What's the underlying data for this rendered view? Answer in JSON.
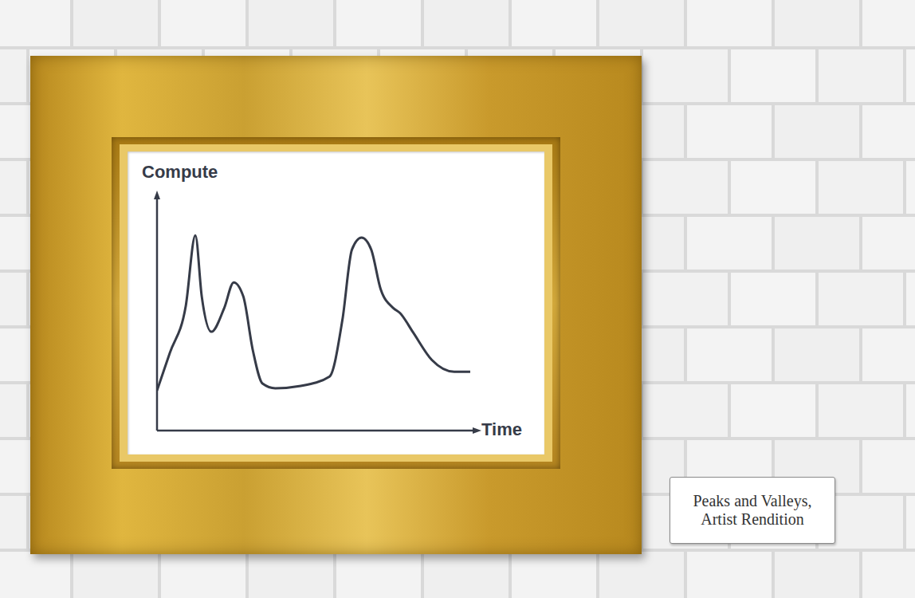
{
  "chart_data": {
    "type": "line",
    "x_label": "Time",
    "y_label": "Compute",
    "x": [
      0,
      4,
      9,
      12,
      14,
      17,
      21,
      24,
      27,
      30,
      33,
      37,
      45,
      54,
      58,
      61,
      64,
      67,
      70,
      74,
      76,
      80,
      86,
      93,
      98
    ],
    "values": [
      17,
      33,
      53,
      83,
      57,
      42,
      52,
      63,
      57,
      34,
      20,
      18,
      19,
      23,
      47,
      77,
      82,
      77,
      60,
      52,
      50,
      42,
      30,
      25,
      25
    ],
    "xlim": [
      0,
      100
    ],
    "ylim": [
      0,
      100
    ],
    "grid": false,
    "tick_labels": false,
    "color": "#363b48",
    "annotations": [
      "Peaks and Valleys,",
      "Artist Rendition"
    ]
  }
}
